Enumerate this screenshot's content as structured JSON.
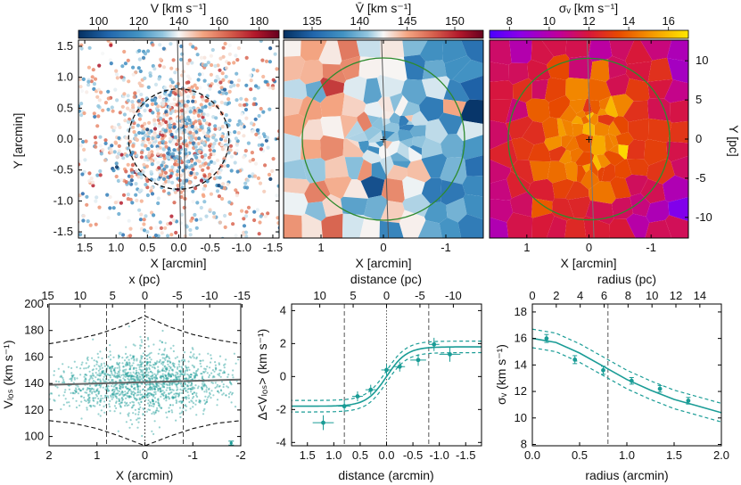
{
  "chart_data": [
    {
      "type": "scatter",
      "panel": "individual-velocities-map",
      "colorbar": {
        "label": "V [km s⁻¹]",
        "ticks": [
          100,
          120,
          140,
          160,
          180
        ],
        "range": [
          90,
          190
        ]
      },
      "xlabel": "X [arcmin]",
      "ylabel": "Y [arcmin]",
      "xlim": [
        1.6,
        -1.6
      ],
      "ylim": [
        -1.6,
        1.6
      ],
      "xticks": [
        1.5,
        1.0,
        0.5,
        0.0,
        -0.5,
        -1.0,
        -1.5
      ],
      "xtick_labels": [
        "1.5",
        "1.0",
        "0.5",
        "0.0",
        "-0.5",
        "-1.0",
        "-1.5"
      ],
      "yticks": [
        1.5,
        1.0,
        0.5,
        0.0,
        -0.5,
        -1.0,
        -1.5
      ],
      "ytick_labels": [
        "1.5",
        "1.0",
        "0.5",
        "0.0",
        "-0.5",
        "-1.0",
        "-1.5"
      ],
      "circle_radius_arcmin": 0.8
    },
    {
      "type": "heatmap",
      "panel": "mean-velocity-voronoi",
      "colorbar": {
        "label": "V̄ [km s⁻¹]",
        "ticks": [
          135,
          140,
          145,
          150
        ],
        "range": [
          132,
          153
        ]
      },
      "xlabel": "X [arcmin]",
      "xlim": [
        1.6,
        -1.6
      ],
      "ylim": [
        -1.6,
        1.6
      ],
      "xticks": [
        1,
        0,
        -1
      ],
      "xtick_labels": [
        "1",
        "0",
        "-1"
      ],
      "circle_radius_arcmin": 1.3
    },
    {
      "type": "heatmap",
      "panel": "dispersion-voronoi",
      "colorbar": {
        "label": "σᵥ [km s⁻¹]",
        "ticks": [
          8,
          10,
          12,
          14,
          16
        ],
        "range": [
          7,
          17
        ]
      },
      "xlabel": "X [arcmin]",
      "ylabel_right": "Y [pc]",
      "xlim": [
        1.6,
        -1.6
      ],
      "ylim": [
        -1.6,
        1.6
      ],
      "xticks": [
        1,
        0,
        -1
      ],
      "xtick_labels": [
        "1",
        "0",
        "-1"
      ],
      "right_ticks_pc": [
        10,
        5,
        0,
        -5,
        -10
      ],
      "right_tick_labels": [
        "10",
        "5",
        "0",
        "-5",
        "-10"
      ],
      "pc_per_arcmin": 7.9,
      "circle_radius_arcmin": 1.3
    },
    {
      "type": "scatter",
      "panel": "vlos-vs-x",
      "xlabel": "X (arcmin)",
      "ylabel": "Vₗₒₛ (km s⁻¹)",
      "top_label": "x (pc)",
      "xlim": [
        2,
        -2
      ],
      "ylim": [
        93,
        200
      ],
      "xticks": [
        2,
        1,
        0,
        -1,
        -2
      ],
      "xtick_labels": [
        "2",
        "1",
        "0",
        "-1",
        "-2"
      ],
      "yticks": [
        100,
        120,
        140,
        160,
        180,
        200
      ],
      "ytick_labels": [
        "100",
        "120",
        "140",
        "160",
        "180",
        "200"
      ],
      "top_ticks": [
        15,
        10,
        5,
        0,
        -5,
        -10,
        -15
      ],
      "top_tick_labels": [
        "15",
        "10",
        "5",
        "0",
        "-5",
        "-10",
        "-15"
      ],
      "vlines": [
        0.8,
        0,
        -0.8
      ],
      "fit_line": {
        "x": [
          2,
          -2
        ],
        "y": [
          139,
          143
        ]
      },
      "envelope_upper": {
        "x": [
          2,
          1.5,
          1,
          0.5,
          0,
          -0.5,
          -1,
          -1.5,
          -2
        ],
        "y": [
          170,
          173,
          177,
          183,
          191,
          183,
          177,
          173,
          170
        ]
      },
      "envelope_lower": {
        "x": [
          2,
          1.5,
          1,
          0.5,
          0,
          -0.5,
          -1,
          -1.5,
          -2
        ],
        "y": [
          112,
          110,
          106,
          100,
          93,
          100,
          106,
          110,
          112
        ]
      },
      "errorbar": {
        "x": -1.8,
        "y": 95,
        "err": 1.5
      }
    },
    {
      "type": "line",
      "panel": "delta-vlos-vs-distance",
      "xlabel": "distance (arcmin)",
      "ylabel": "Δ<Vₗₒₛ> (km s⁻¹)",
      "top_label": "distance (pc)",
      "xlim": [
        1.8,
        -1.8
      ],
      "ylim": [
        -4.2,
        4.4
      ],
      "xticks": [
        1.5,
        1.0,
        0.5,
        0.0,
        -0.5,
        -1.0,
        -1.5
      ],
      "xtick_labels": [
        "1.5",
        "1.0",
        "0.5",
        "0.0",
        "-0.5",
        "-1.0",
        "-1.5"
      ],
      "yticks": [
        -4,
        -2,
        0,
        2,
        4
      ],
      "ytick_labels": [
        "-4",
        "-2",
        "0",
        "2",
        "4"
      ],
      "top_ticks": [
        10,
        5,
        0,
        -5,
        -10
      ],
      "top_tick_labels": [
        "10",
        "5",
        "0",
        "-5",
        "-10"
      ],
      "vlines": [
        0.8,
        0,
        -0.8
      ],
      "model": {
        "amplitude": 1.8,
        "scale_arcmin": 0.38,
        "band": 0.35
      },
      "points": [
        {
          "x": 1.2,
          "y": -2.8,
          "xerr": 0.2,
          "yerr": 0.45
        },
        {
          "x": 0.8,
          "y": -1.8,
          "xerr": 0.12,
          "yerr": 0.35
        },
        {
          "x": 0.55,
          "y": -1.2,
          "xerr": 0.1,
          "yerr": 0.3
        },
        {
          "x": 0.3,
          "y": -0.8,
          "xerr": 0.1,
          "yerr": 0.3
        },
        {
          "x": 0.0,
          "y": 0.4,
          "xerr": 0.1,
          "yerr": 0.35
        },
        {
          "x": -0.25,
          "y": 0.6,
          "xerr": 0.1,
          "yerr": 0.3
        },
        {
          "x": -0.6,
          "y": 1.0,
          "xerr": 0.15,
          "yerr": 0.35
        },
        {
          "x": -0.9,
          "y": 1.95,
          "xerr": 0.1,
          "yerr": 0.4
        },
        {
          "x": -1.2,
          "y": 1.35,
          "xerr": 0.2,
          "yerr": 0.45
        }
      ]
    },
    {
      "type": "line",
      "panel": "sigma-vs-radius",
      "xlabel": "radius (arcmin)",
      "ylabel": "σᵥ (km s⁻¹)",
      "top_label": "radius (pc)",
      "xlim": [
        0,
        2
      ],
      "ylim": [
        7.9,
        18.6
      ],
      "xticks": [
        0,
        0.5,
        1,
        1.5,
        2
      ],
      "xtick_labels": [
        "0.0",
        "0.5",
        "1.0",
        "1.5",
        "2.0"
      ],
      "yticks": [
        8,
        10,
        12,
        14,
        16,
        18
      ],
      "ytick_labels": [
        "8",
        "10",
        "12",
        "14",
        "16",
        "18"
      ],
      "top_ticks": [
        0,
        2,
        4,
        6,
        8,
        10,
        12,
        14
      ],
      "top_tick_labels": [
        "0",
        "2",
        "4",
        "6",
        "8",
        "10",
        "12",
        "14"
      ],
      "pc_per_arcmin": 7.9,
      "vline": 0.8,
      "model": {
        "x": [
          0,
          0.25,
          0.5,
          0.75,
          1.0,
          1.25,
          1.5,
          1.75,
          2.0
        ],
        "y": [
          16.0,
          15.7,
          14.9,
          13.9,
          12.9,
          12.1,
          11.4,
          10.9,
          10.4
        ],
        "band": 0.7
      },
      "points": [
        {
          "x": 0.15,
          "y": 16.0,
          "yerr": 0.3
        },
        {
          "x": 0.45,
          "y": 14.4,
          "yerr": 0.3
        },
        {
          "x": 0.75,
          "y": 13.6,
          "yerr": 0.3
        },
        {
          "x": 1.05,
          "y": 12.8,
          "yerr": 0.25
        },
        {
          "x": 1.35,
          "y": 12.2,
          "yerr": 0.25
        },
        {
          "x": 1.65,
          "y": 11.3,
          "yerr": 0.25
        }
      ]
    }
  ]
}
